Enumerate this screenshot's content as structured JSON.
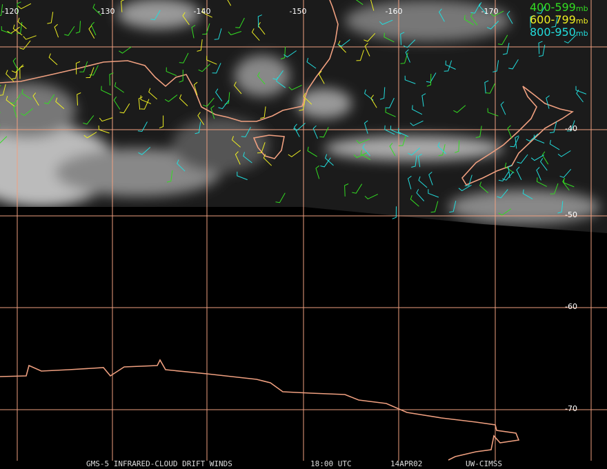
{
  "map": {
    "lon_labels": [
      "-120",
      "-130",
      "-140",
      "-150",
      "-160",
      "-170"
    ],
    "lat_labels": [
      "-40",
      "-50",
      "-60",
      "-70"
    ],
    "legend": [
      {
        "range": "400-599",
        "unit": "mb",
        "color": "#33dd22"
      },
      {
        "range": "600-799",
        "unit": "mb",
        "color": "#eeee22"
      },
      {
        "range": "800-950",
        "unit": "mb",
        "color": "#22dddd"
      }
    ],
    "footer": [
      "GMS-5 INFRARED-CLOUD DRIFT WINDS",
      "18:00 UTC",
      "14APR02",
      "UW-CIMSS"
    ]
  }
}
